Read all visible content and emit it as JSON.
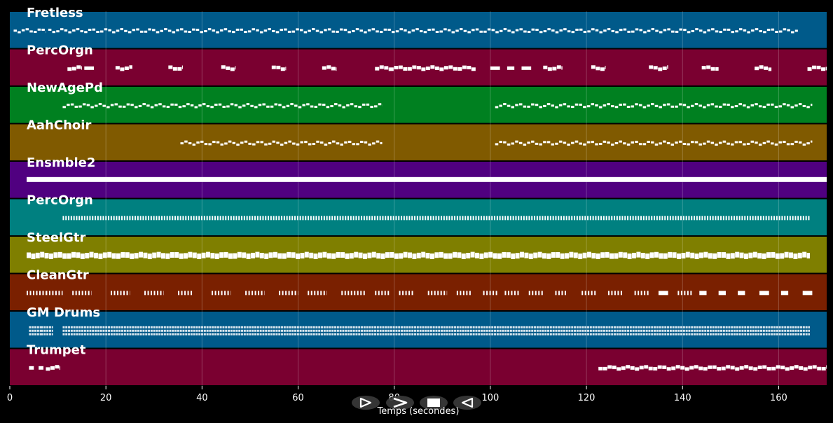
{
  "chart_data": {
    "type": "piano-roll",
    "xlabel": "Temps (secondes)",
    "xlim": [
      0,
      170
    ],
    "xticks": [
      0,
      20,
      40,
      60,
      80,
      100,
      120,
      140,
      160
    ],
    "grid": true,
    "tracks": [
      {
        "name": "Fretless",
        "color": "#005a8a",
        "pattern": "dense",
        "segments": [
          [
            0.8,
            7.5
          ],
          [
            8,
            164
          ]
        ]
      },
      {
        "name": "PercOrgn",
        "color": "#7a0030",
        "pattern": "sparse",
        "segments": [
          [
            12,
            15
          ],
          [
            15.5,
            17.5
          ],
          [
            22,
            25.5
          ],
          [
            33,
            36
          ],
          [
            44,
            47
          ],
          [
            54.5,
            57.5
          ],
          [
            65,
            68
          ],
          [
            76,
            79
          ],
          [
            79,
            97
          ],
          [
            100,
            102
          ],
          [
            103.5,
            105
          ],
          [
            106.5,
            108.5
          ],
          [
            111,
            115
          ],
          [
            121,
            124
          ],
          [
            133,
            137
          ],
          [
            144,
            147.5
          ],
          [
            155,
            158.5
          ],
          [
            166,
            170
          ]
        ]
      },
      {
        "name": "NewAgePd",
        "color": "#008020",
        "pattern": "dense",
        "segments": [
          [
            11,
            77.5
          ],
          [
            101,
            167
          ]
        ]
      },
      {
        "name": "AahChoir",
        "color": "#805a00",
        "pattern": "dense",
        "segments": [
          [
            35.5,
            77.5
          ],
          [
            101,
            167
          ]
        ]
      },
      {
        "name": "Ensmble2",
        "color": "#500080",
        "pattern": "sustained",
        "segments": [
          [
            3.5,
            170
          ]
        ]
      },
      {
        "name": "PercOrgn",
        "color": "#008080",
        "pattern": "ticks",
        "segments": [
          [
            11,
            166.5
          ]
        ]
      },
      {
        "name": "SteelGtr",
        "color": "#7f7f00",
        "pattern": "thick",
        "segments": [
          [
            3.5,
            166.5
          ]
        ]
      },
      {
        "name": "CleanGtr",
        "color": "#7a2000",
        "pattern": "sparse-ticks",
        "segments": [
          [
            3.5,
            7.5
          ],
          [
            7.5,
            11
          ],
          [
            13,
            17
          ],
          [
            21,
            25
          ],
          [
            28,
            32
          ],
          [
            35,
            38
          ],
          [
            42,
            46
          ],
          [
            49,
            53
          ],
          [
            56,
            60
          ],
          [
            62,
            66
          ],
          [
            69,
            74
          ],
          [
            76,
            79
          ],
          [
            81,
            84
          ],
          [
            87,
            91
          ],
          [
            93,
            96
          ],
          [
            98.5,
            101.5
          ],
          [
            103,
            106
          ],
          [
            108,
            111
          ],
          [
            113.5,
            116
          ],
          [
            119,
            122
          ],
          [
            124.5,
            127.5
          ],
          [
            130,
            133
          ],
          [
            135,
            137
          ],
          [
            139,
            142
          ],
          [
            143.5,
            145
          ],
          [
            147.5,
            149
          ],
          [
            151.5,
            153
          ],
          [
            156,
            158
          ],
          [
            160.5,
            162
          ],
          [
            165,
            167
          ]
        ]
      },
      {
        "name": "GM Drums",
        "color": "#005a8a",
        "pattern": "drums",
        "segments": [
          [
            4,
            6.5
          ],
          [
            6.5,
            9
          ],
          [
            11,
            166.5
          ]
        ]
      },
      {
        "name": "Trumpet",
        "color": "#7a0030",
        "pattern": "sparse",
        "segments": [
          [
            4,
            5
          ],
          [
            6,
            7
          ],
          [
            7.5,
            10.5
          ],
          [
            122.5,
            170
          ]
        ]
      }
    ]
  },
  "controls": [
    {
      "name": "play-button",
      "glyph": "play"
    },
    {
      "name": "fast-forward-button",
      "glyph": "forward"
    },
    {
      "name": "stop-button",
      "glyph": "stop"
    },
    {
      "name": "rewind-button",
      "glyph": "back"
    }
  ]
}
